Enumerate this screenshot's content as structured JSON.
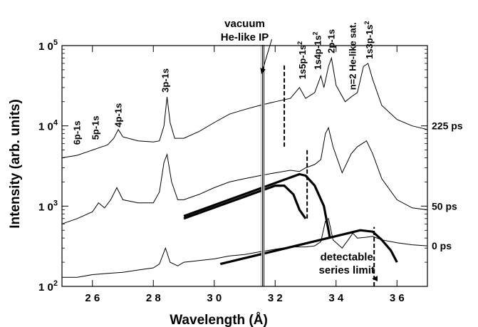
{
  "chart_data": {
    "type": "line",
    "xlabel": "Wavelength (Å)",
    "ylabel": "Intensity (arb. units)",
    "xlim": [
      25,
      37
    ],
    "ylim_log10": [
      2,
      5
    ],
    "x_ticks": [
      26,
      28,
      30,
      32,
      34,
      36
    ],
    "x_tick_labels": [
      "2 6",
      "2 8",
      "3 0",
      "3 2",
      "3 4",
      "3 6"
    ],
    "y_ticks": [
      100,
      1000,
      10000,
      100000
    ],
    "y_tick_base": "1 0",
    "y_tick_exponents": [
      "2",
      "3",
      "4",
      "5"
    ],
    "series": [
      {
        "name": "225 ps",
        "points": [
          [
            25,
            4000
          ],
          [
            25.5,
            4300
          ],
          [
            26.0,
            5000
          ],
          [
            26.2,
            5300
          ],
          [
            26.5,
            5800
          ],
          [
            26.7,
            7000
          ],
          [
            26.85,
            9000
          ],
          [
            27.0,
            7300
          ],
          [
            27.5,
            6500
          ],
          [
            28.0,
            6300
          ],
          [
            28.2,
            6500
          ],
          [
            28.35,
            10000
          ],
          [
            28.45,
            23000
          ],
          [
            28.55,
            11000
          ],
          [
            28.7,
            7000
          ],
          [
            29.0,
            7000
          ],
          [
            29.5,
            8500
          ],
          [
            30.0,
            11000
          ],
          [
            30.5,
            14000
          ],
          [
            31.0,
            16000
          ],
          [
            31.5,
            18000
          ],
          [
            32.0,
            20000
          ],
          [
            32.5,
            22000
          ],
          [
            32.8,
            30000
          ],
          [
            33.0,
            22000
          ],
          [
            33.3,
            26000
          ],
          [
            33.5,
            42000
          ],
          [
            33.6,
            30000
          ],
          [
            33.75,
            55000
          ],
          [
            33.85,
            70000
          ],
          [
            34.0,
            32000
          ],
          [
            34.3,
            20000
          ],
          [
            34.5,
            23000
          ],
          [
            34.7,
            26000
          ],
          [
            34.9,
            55000
          ],
          [
            35.05,
            60000
          ],
          [
            35.2,
            38000
          ],
          [
            35.5,
            18000
          ],
          [
            36.0,
            12000
          ],
          [
            36.5,
            10000
          ],
          [
            37.0,
            9000
          ]
        ]
      },
      {
        "name": "50 ps",
        "points": [
          [
            25,
            600
          ],
          [
            25.5,
            700
          ],
          [
            26.0,
            850
          ],
          [
            26.2,
            1100
          ],
          [
            26.4,
            950
          ],
          [
            26.6,
            1200
          ],
          [
            26.8,
            1700
          ],
          [
            27.0,
            1200
          ],
          [
            27.5,
            1100
          ],
          [
            28.0,
            1100
          ],
          [
            28.2,
            1500
          ],
          [
            28.35,
            3500
          ],
          [
            28.45,
            4400
          ],
          [
            28.6,
            2000
          ],
          [
            28.8,
            1200
          ],
          [
            29.0,
            1200
          ],
          [
            29.5,
            1400
          ],
          [
            30.0,
            1700
          ],
          [
            30.5,
            2000
          ],
          [
            31.0,
            2200
          ],
          [
            31.5,
            2400
          ],
          [
            32.0,
            2600
          ],
          [
            32.5,
            2800
          ],
          [
            32.8,
            2700
          ],
          [
            33.0,
            3000
          ],
          [
            33.3,
            3300
          ],
          [
            33.5,
            3800
          ],
          [
            33.65,
            8000
          ],
          [
            33.75,
            9500
          ],
          [
            33.9,
            5500
          ],
          [
            34.2,
            2600
          ],
          [
            34.5,
            4500
          ],
          [
            34.7,
            5500
          ],
          [
            35.0,
            6500
          ],
          [
            35.2,
            4500
          ],
          [
            35.5,
            2200
          ],
          [
            36.0,
            1200
          ],
          [
            36.5,
            950
          ],
          [
            37.0,
            900
          ]
        ]
      },
      {
        "name": "0 ps",
        "points": [
          [
            25,
            130
          ],
          [
            25.5,
            130
          ],
          [
            26.0,
            140
          ],
          [
            26.5,
            145
          ],
          [
            27.0,
            150
          ],
          [
            27.5,
            160
          ],
          [
            28.0,
            170
          ],
          [
            28.2,
            190
          ],
          [
            28.4,
            300
          ],
          [
            28.55,
            200
          ],
          [
            28.8,
            180
          ],
          [
            29.0,
            200
          ],
          [
            29.5,
            210
          ],
          [
            30.0,
            220
          ],
          [
            30.5,
            240
          ],
          [
            31.0,
            250
          ],
          [
            31.5,
            270
          ],
          [
            32.0,
            290
          ],
          [
            32.5,
            310
          ],
          [
            33.0,
            310
          ],
          [
            33.3,
            320
          ],
          [
            33.5,
            360
          ],
          [
            33.65,
            650
          ],
          [
            33.75,
            700
          ],
          [
            33.9,
            380
          ],
          [
            34.2,
            300
          ],
          [
            34.4,
            380
          ],
          [
            34.55,
            460
          ],
          [
            34.7,
            400
          ],
          [
            35.0,
            410
          ],
          [
            35.2,
            420
          ],
          [
            35.5,
            380
          ],
          [
            36.0,
            350
          ],
          [
            36.5,
            330
          ],
          [
            37.0,
            320
          ]
        ]
      }
    ],
    "thick_curves": [
      {
        "points": [
          [
            29.0,
            700
          ],
          [
            32.0,
            1800
          ],
          [
            32.3,
            1800
          ],
          [
            32.6,
            1400
          ],
          [
            32.8,
            900
          ],
          [
            33.0,
            700
          ]
        ]
      },
      {
        "points": [
          [
            29.0,
            750
          ],
          [
            32.8,
            2500
          ],
          [
            33.0,
            2400
          ],
          [
            33.3,
            1800
          ],
          [
            33.6,
            1000
          ],
          [
            33.8,
            400
          ]
        ]
      },
      {
        "points": [
          [
            30.2,
            190
          ],
          [
            34.8,
            500
          ],
          [
            35.2,
            480
          ],
          [
            35.5,
            380
          ],
          [
            35.8,
            280
          ],
          [
            36.0,
            200
          ]
        ]
      }
    ],
    "series_limit_markers": [
      {
        "x": 32.3,
        "y_from": 5500,
        "y_to": 60000
      },
      {
        "x": 33.05,
        "y_from": 700,
        "y_to": 5000
      },
      {
        "x": 35.25,
        "y_from": 100,
        "y_to": 550
      }
    ],
    "ip_line_x": 31.6,
    "annotations": [
      {
        "text": "vacuum",
        "x": 31.0,
        "y": 170000
      },
      {
        "text": "He-like  IP",
        "x": 31.0,
        "y": 115000
      },
      {
        "text": "detectable",
        "x": 34.35,
        "y": 210
      },
      {
        "text": "series limit",
        "x": 34.35,
        "y": 145
      }
    ],
    "peak_labels": [
      {
        "text": "6p-1s",
        "x": 25.6,
        "y": 5800
      },
      {
        "text": "5p-1s",
        "x": 26.2,
        "y": 6700
      },
      {
        "text": "4p-1s",
        "x": 26.95,
        "y": 9600
      },
      {
        "text": "3p-1s",
        "x": 28.5,
        "y": 26000
      },
      {
        "text": "1s5p-1s",
        "sup": "2",
        "x": 33.0,
        "y": 38000
      },
      {
        "text": "1s4p-1s",
        "sup": "2",
        "x": 33.5,
        "y": 50000
      },
      {
        "text": "2p-1s",
        "x": 33.95,
        "y": 80000
      },
      {
        "text": "n=2  He-like  sat.",
        "x": 34.65,
        "y": 28000
      },
      {
        "text": "1s3p-1s",
        "sup": "2",
        "x": 35.2,
        "y": 68000
      }
    ],
    "series_labels": [
      {
        "text": "225 ps",
        "y": 10000
      },
      {
        "text": "50 ps",
        "y": 1000
      },
      {
        "text": "0 ps",
        "y": 320
      }
    ]
  }
}
